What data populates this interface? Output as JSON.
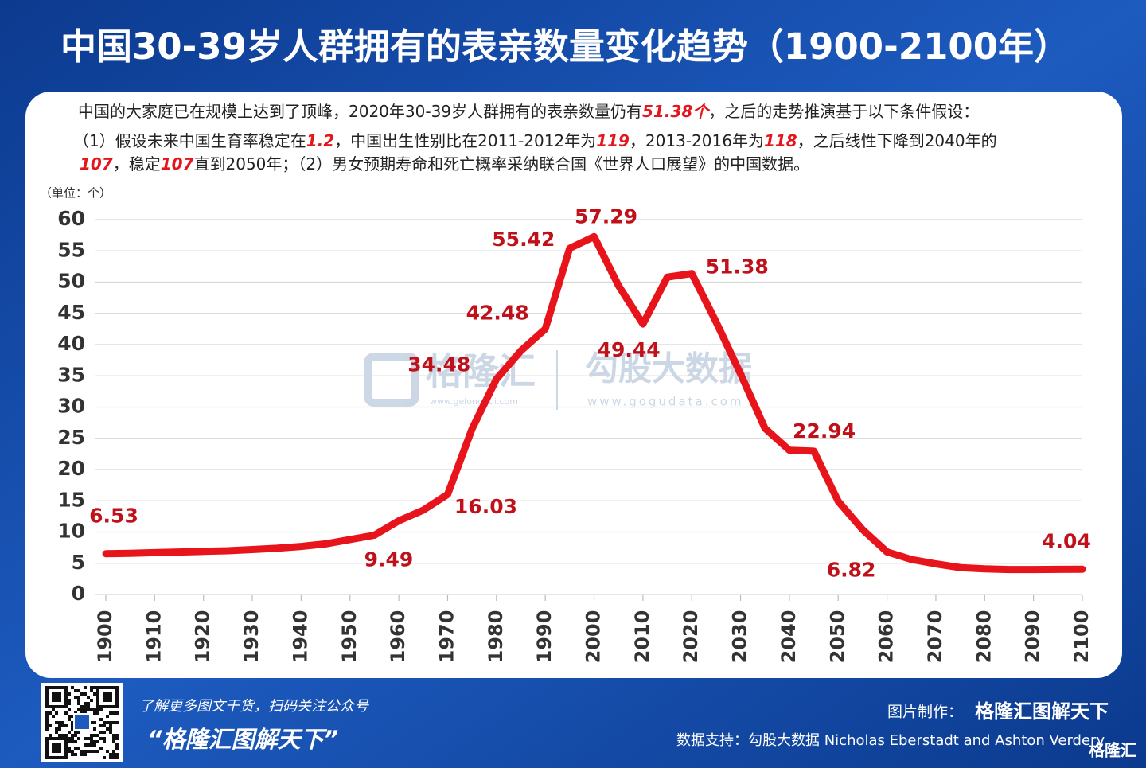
{
  "header": {
    "title": "中国30-39岁人群拥有的表亲数量变化趋势（1900-2100年）"
  },
  "notes": [
    [
      {
        "text": "中国的大家庭已在规模上达到了顶峰，2020年30-39岁人群拥有的表亲数量仍有",
        "em": false
      },
      {
        "text": "51.38个",
        "em": true
      },
      {
        "text": "，之后的走势推演基于以下条件假设：",
        "em": false
      }
    ],
    [
      {
        "text": "（1）假设未来中国生育率稳定在",
        "em": false
      },
      {
        "text": "1.2",
        "em": true
      },
      {
        "text": "，中国出生性别比在2011-2012年为",
        "em": false
      },
      {
        "text": "119",
        "em": true
      },
      {
        "text": "，2013-2016年为",
        "em": false
      },
      {
        "text": "118",
        "em": true
      },
      {
        "text": "，之后线性下降到2040年的",
        "em": false
      }
    ],
    [
      {
        "text": "107",
        "em": true
      },
      {
        "text": "，稳定",
        "em": false
      },
      {
        "text": "107",
        "em": true
      },
      {
        "text": "直到2050年；（2）男女预期寿命和死亡概率采纳联合国《世界人口展望》的中国数据。",
        "em": false
      }
    ]
  ],
  "chart_data": {
    "type": "line",
    "unit_label": "（单位：个）",
    "x": [
      1900,
      1905,
      1910,
      1915,
      1920,
      1925,
      1930,
      1935,
      1940,
      1945,
      1950,
      1955,
      1960,
      1965,
      1970,
      1975,
      1980,
      1985,
      1990,
      1995,
      2000,
      2005,
      2010,
      2015,
      2020,
      2025,
      2030,
      2035,
      2040,
      2045,
      2050,
      2055,
      2060,
      2065,
      2070,
      2075,
      2080,
      2085,
      2090,
      2095,
      2100
    ],
    "series": [
      {
        "color": "#e8141b",
        "values": [
          6.53,
          6.6,
          6.7,
          6.8,
          6.9,
          7.0,
          7.2,
          7.4,
          7.7,
          8.1,
          8.8,
          9.49,
          11.8,
          13.5,
          16.03,
          26.5,
          34.48,
          39,
          42.48,
          55.42,
          57.29,
          49.44,
          43.3,
          50.8,
          51.38,
          43.6,
          35.3,
          26.6,
          23.1,
          22.94,
          14.9,
          10.4,
          6.82,
          5.6,
          4.9,
          4.3,
          4.1,
          4.0,
          4.0,
          4.02,
          4.04
        ]
      }
    ],
    "labeled_points": [
      0,
      11,
      14,
      16,
      18,
      19,
      20,
      21,
      24,
      29,
      32,
      40
    ],
    "label_color": "#c0111a",
    "xlim": [
      1900,
      2100
    ],
    "xticks": [
      1900,
      1910,
      1920,
      1930,
      1940,
      1950,
      1960,
      1970,
      1980,
      1990,
      2000,
      2010,
      2020,
      2030,
      2040,
      2050,
      2060,
      2070,
      2080,
      2090,
      2100
    ],
    "ylim": [
      0,
      60
    ],
    "yticks": [
      0,
      5,
      10,
      15,
      20,
      25,
      30,
      35,
      40,
      45,
      50,
      55,
      60
    ],
    "grid": true
  },
  "watermark": {
    "logo1": "格隆汇",
    "url1": "www.gelonghui.com",
    "logo2": "勾股大数据",
    "url2": "www.gogudata.com"
  },
  "footer": {
    "prompt": "了解更多图文干货，扫码关注公众号",
    "account": "“格隆汇图解天下”",
    "made_by_label": "图片制作：",
    "made_by": "格隆汇图解天下",
    "source": "数据支持：勾股大数据 Nicholas Eberstadt and Ashton Verdery",
    "corner": "格隆汇"
  }
}
